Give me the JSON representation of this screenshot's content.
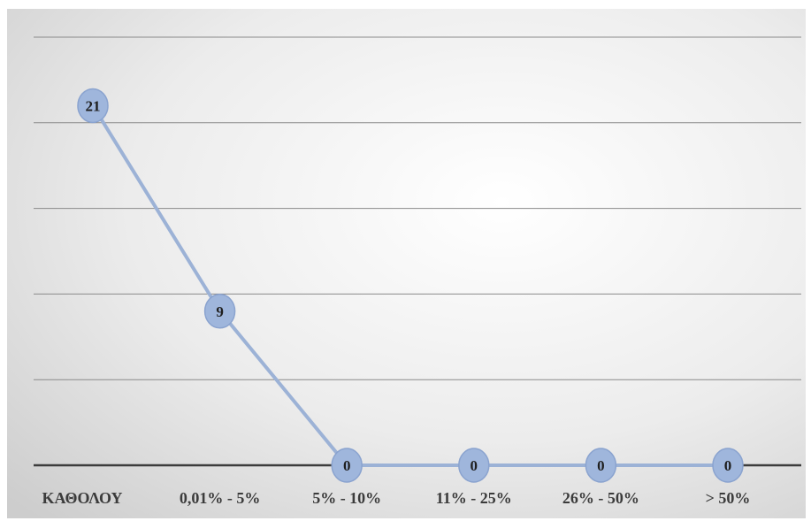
{
  "chart_data": {
    "type": "line",
    "title": "",
    "xlabel": "",
    "ylabel": "",
    "categories": [
      "ΚΑΘΟΛΟΥ",
      "0,01% - 5%",
      "5% - 10%",
      "11% - 25%",
      "26% - 50%",
      "> 50%"
    ],
    "series": [
      {
        "values": [
          21,
          9,
          0,
          0,
          0,
          0
        ]
      }
    ],
    "point_labels": [
      "21",
      "9",
      "0",
      "0",
      "0",
      "0"
    ],
    "ylim": [
      0,
      25
    ],
    "grid": true,
    "legend": "none",
    "colors": {
      "line": "#9cb2d6",
      "marker": "#9fb6dc",
      "marker_stroke": "#8aa3cf",
      "gridline": "#8a8a8a",
      "axis": "#3c3c3c",
      "background_light": "#ffffff",
      "background_dark": "#cfcfcf"
    }
  }
}
